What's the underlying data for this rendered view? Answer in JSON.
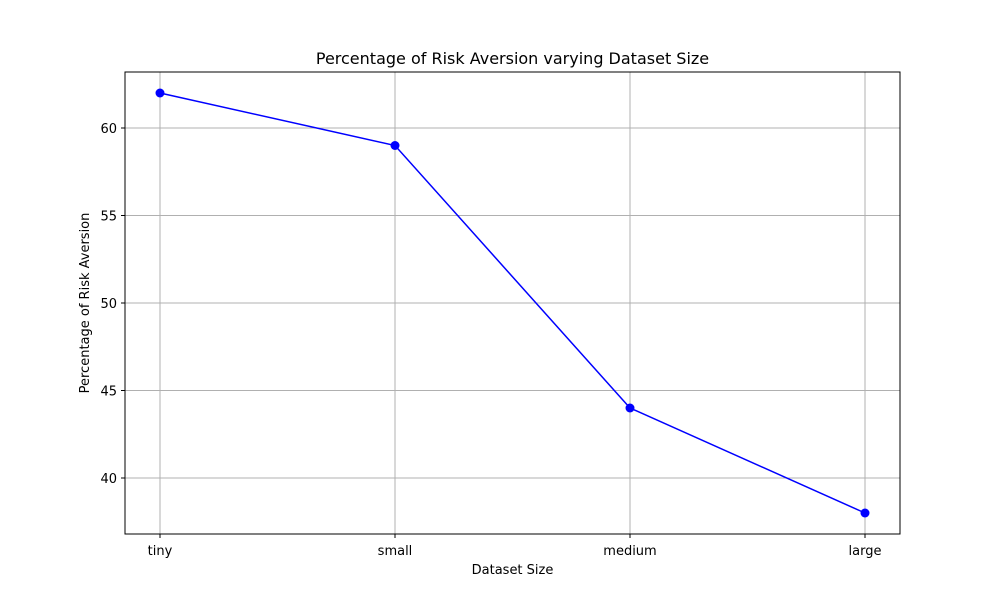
{
  "chart_data": {
    "type": "line",
    "title": "Percentage of Risk Aversion varying Dataset Size",
    "xlabel": "Dataset Size",
    "ylabel": "Percentage of Risk Aversion",
    "categories": [
      "tiny",
      "small",
      "medium",
      "large"
    ],
    "series": [
      {
        "values": [
          62,
          59,
          44,
          38
        ],
        "color": "#0000ff",
        "marker": "circle"
      }
    ],
    "ylim": [
      36.8,
      63.2
    ],
    "yticks": [
      40,
      45,
      50,
      55,
      60
    ],
    "grid": true,
    "legend": "none"
  }
}
